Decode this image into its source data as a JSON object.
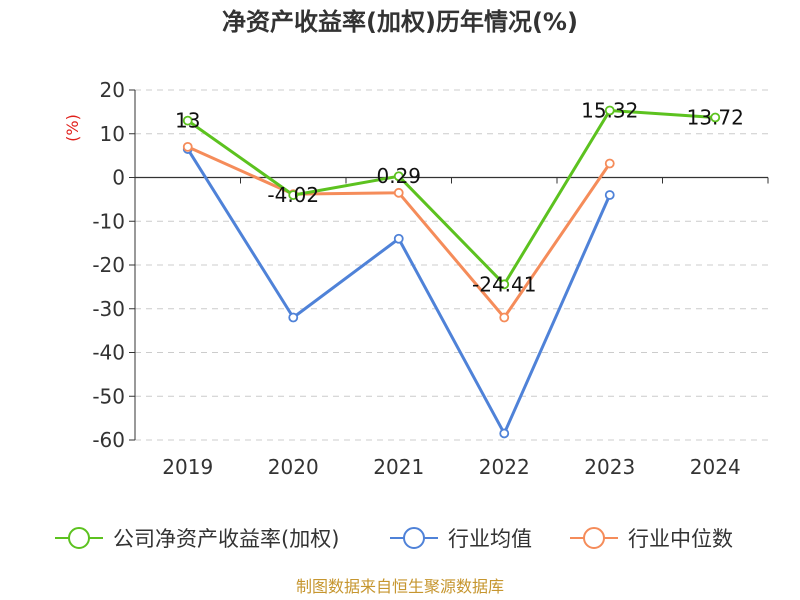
{
  "chart_data": {
    "type": "line",
    "title": "净资产收益率(加权)历年情况(%)",
    "ylabel": "(%)",
    "xlabel": "",
    "categories": [
      "2019",
      "2020",
      "2021",
      "2022",
      "2023",
      "2024"
    ],
    "ylim": [
      -60,
      20
    ],
    "yticks": [
      20,
      10,
      0,
      -10,
      -20,
      -30,
      -40,
      -50,
      -60
    ],
    "grid": true,
    "legend_position": "bottom",
    "series": [
      {
        "name": "公司净资产收益率(加权)",
        "color": "#5cc21f",
        "values": [
          13,
          -4.02,
          0.29,
          -24.41,
          15.32,
          13.72
        ],
        "labels": [
          "13",
          "-4.02",
          "0.29",
          "-24.41",
          "15.32",
          "13.72"
        ]
      },
      {
        "name": "行业均值",
        "color": "#4f82d8",
        "values": [
          6.5,
          -32,
          -14,
          -58.5,
          -4,
          null
        ]
      },
      {
        "name": "行业中位数",
        "color": "#f58c5a",
        "values": [
          7,
          -3.8,
          -3.5,
          -32,
          3.2,
          null
        ]
      }
    ]
  },
  "source": "制图数据来自恒生聚源数据库"
}
